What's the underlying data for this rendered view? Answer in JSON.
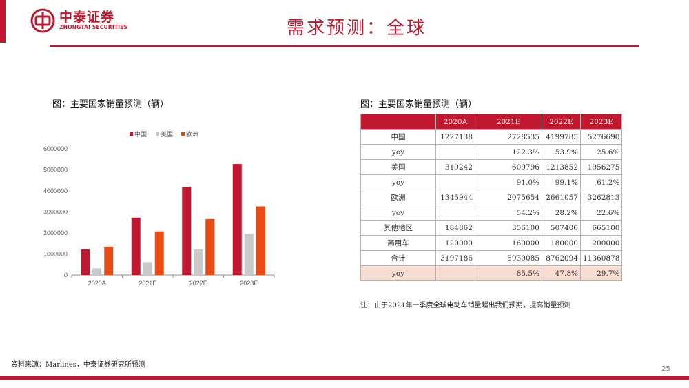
{
  "logo": {
    "cn": "中泰证券",
    "en": "ZHONGTAI SECURITIES"
  },
  "header": {
    "title": "需求预测：全球"
  },
  "left_panel": {
    "caption": "图：主要国家销量预测（辆）"
  },
  "right_panel": {
    "caption": "图：主要国家销量预测（辆）"
  },
  "colors": {
    "brand": "#c0182f",
    "china": "#c0182f",
    "usa": "#c9c9c9",
    "europe": "#e84c14",
    "highlight_row": "#f8ddd2"
  },
  "chart_data": {
    "type": "bar",
    "categories": [
      "2020A",
      "2021E",
      "2022E",
      "2023E"
    ],
    "series": [
      {
        "name": "中国",
        "values": [
          1227138,
          2728535,
          4199785,
          5276690
        ]
      },
      {
        "name": "美国",
        "values": [
          319242,
          609796,
          1213852,
          1956275
        ]
      },
      {
        "name": "欧洲",
        "values": [
          1345944,
          2075654,
          2661057,
          3262813
        ]
      }
    ],
    "y_ticks": [
      "6000000",
      "5000000",
      "4000000",
      "3000000",
      "2000000",
      "1000000",
      "0"
    ],
    "ylim": [
      0,
      6000000
    ],
    "legend": "top",
    "grid": false
  },
  "table": {
    "headers": [
      "",
      "2020A",
      "2021E",
      "2022E",
      "2023E"
    ],
    "rows": [
      [
        "中国",
        "1227138",
        "2728535",
        "4199785",
        "5276690"
      ],
      [
        "yoy",
        "",
        "122.3%",
        "53.9%",
        "25.6%"
      ],
      [
        "美国",
        "319242",
        "609796",
        "1213852",
        "1956275"
      ],
      [
        "yoy",
        "",
        "91.0%",
        "99.1%",
        "61.2%"
      ],
      [
        "欧洲",
        "1345944",
        "2075654",
        "2661057",
        "3262813"
      ],
      [
        "yoy",
        "",
        "54.2%",
        "28.2%",
        "22.6%"
      ],
      [
        "其他地区",
        "184862",
        "356100",
        "507400",
        "665100"
      ],
      [
        "商用车",
        "120000",
        "160000",
        "180000",
        "200000"
      ],
      [
        "合计",
        "3197186",
        "5930085",
        "8762094",
        "11360878"
      ],
      [
        "yoy",
        "",
        "85.5%",
        "47.8%",
        "29.7%"
      ]
    ]
  },
  "note": "注：由于2021年一季度全球电动车销量超出我们预期，提高销量预测",
  "source": "资料来源：Marlines，中泰证券研究所预测",
  "page_number": "25"
}
